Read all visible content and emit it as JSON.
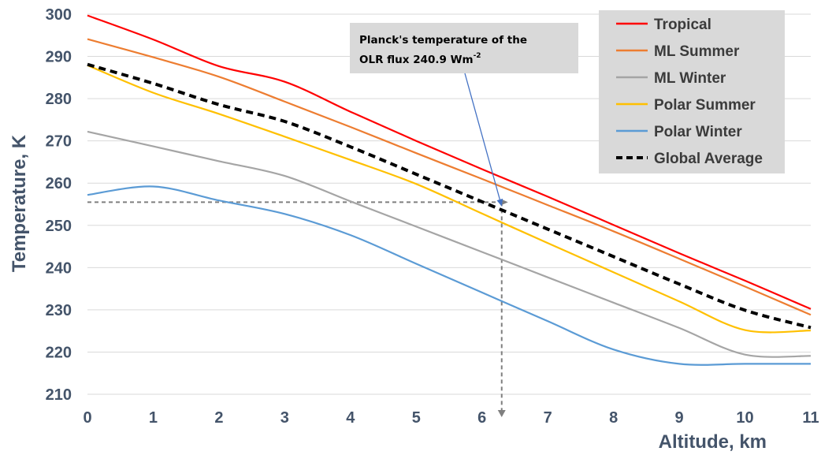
{
  "chart_data": {
    "type": "line",
    "title": "",
    "xlabel": "Altitude, km",
    "ylabel": "Temperature, K",
    "xlim": [
      0,
      11
    ],
    "ylim": [
      210,
      300
    ],
    "xticks": [
      0,
      1,
      2,
      3,
      4,
      5,
      6,
      7,
      8,
      9,
      10,
      11
    ],
    "yticks": [
      210,
      220,
      230,
      240,
      250,
      260,
      270,
      280,
      290,
      300
    ],
    "grid": "horizontal",
    "legend_position": "top-right",
    "series": [
      {
        "name": "Tropical",
        "color": "#ff0000",
        "dash": "solid",
        "points": [
          [
            0,
            299.7
          ],
          [
            1,
            294.0
          ],
          [
            2,
            287.7
          ],
          [
            3,
            284.0
          ],
          [
            4,
            276.9
          ],
          [
            5,
            270.0
          ],
          [
            6,
            263.3
          ],
          [
            7,
            256.8
          ],
          [
            8,
            250.1
          ],
          [
            9,
            243.4
          ],
          [
            10,
            236.9
          ],
          [
            11,
            230.2
          ]
        ]
      },
      {
        "name": "ML Summer",
        "color": "#ed7d31",
        "dash": "solid",
        "points": [
          [
            0,
            294.1
          ],
          [
            1,
            289.8
          ],
          [
            2,
            285.2
          ],
          [
            3,
            279.3
          ],
          [
            4,
            273.3
          ],
          [
            5,
            267.1
          ],
          [
            6,
            261.0
          ],
          [
            7,
            254.8
          ],
          [
            8,
            248.6
          ],
          [
            9,
            242.1
          ],
          [
            10,
            235.5
          ],
          [
            11,
            228.8
          ]
        ]
      },
      {
        "name": "ML Winter",
        "color": "#a5a5a5",
        "dash": "solid",
        "points": [
          [
            0,
            272.2
          ],
          [
            1,
            268.7
          ],
          [
            2,
            265.2
          ],
          [
            3,
            261.7
          ],
          [
            4,
            255.7
          ],
          [
            5,
            249.7
          ],
          [
            6,
            243.7
          ],
          [
            7,
            237.7
          ],
          [
            8,
            231.7
          ],
          [
            9,
            225.7
          ],
          [
            10,
            219.4
          ],
          [
            11,
            219.1
          ]
        ]
      },
      {
        "name": "Polar Summer",
        "color": "#ffc000",
        "dash": "solid",
        "points": [
          [
            0,
            287.9
          ],
          [
            1,
            281.4
          ],
          [
            2,
            276.4
          ],
          [
            3,
            271.0
          ],
          [
            4,
            265.5
          ],
          [
            5,
            259.8
          ],
          [
            6,
            252.8
          ],
          [
            7,
            245.8
          ],
          [
            8,
            238.9
          ],
          [
            9,
            232.0
          ],
          [
            10,
            225.2
          ],
          [
            11,
            225.1
          ]
        ]
      },
      {
        "name": "Polar Winter",
        "color": "#5b9bd5",
        "dash": "solid",
        "points": [
          [
            0,
            257.2
          ],
          [
            1,
            259.2
          ],
          [
            2,
            255.9
          ],
          [
            3,
            252.7
          ],
          [
            4,
            247.7
          ],
          [
            5,
            240.9
          ],
          [
            6,
            234.1
          ],
          [
            7,
            227.3
          ],
          [
            8,
            220.6
          ],
          [
            9,
            217.2
          ],
          [
            10,
            217.2
          ],
          [
            11,
            217.2
          ]
        ]
      },
      {
        "name": "Global Average",
        "color": "#000000",
        "dash": "dashed",
        "points": [
          [
            0,
            288.1
          ],
          [
            1,
            283.6
          ],
          [
            2,
            278.6
          ],
          [
            3,
            274.6
          ],
          [
            4,
            268.6
          ],
          [
            5,
            262.1
          ],
          [
            6,
            255.6
          ],
          [
            7,
            249.1
          ],
          [
            8,
            242.6
          ],
          [
            9,
            236.1
          ],
          [
            10,
            229.9
          ],
          [
            11,
            225.8
          ]
        ]
      }
    ],
    "reference_lines": {
      "color": "#7f7f7f",
      "point": {
        "x": 6.3,
        "y": 255.5
      }
    },
    "annotation": {
      "line1": "Planck's temperature of the",
      "line2_main": "OLR flux 240.9 Wm",
      "line2_sup": "-2",
      "target": {
        "x": 6.3,
        "y": 254.5
      },
      "arrow_color": "#4472c4"
    }
  }
}
